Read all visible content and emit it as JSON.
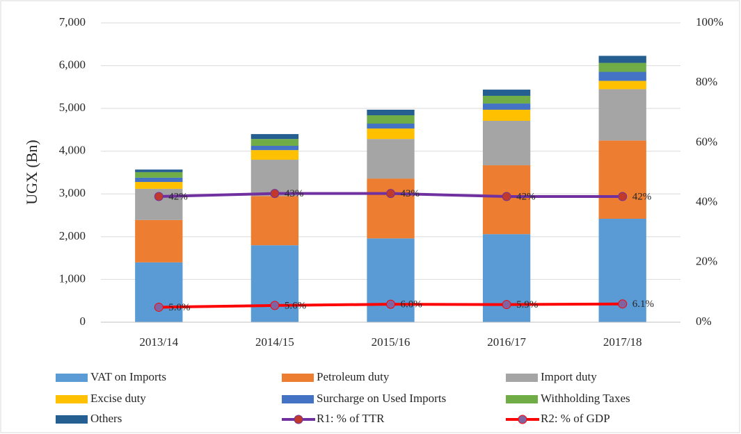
{
  "chart_data": {
    "type": "bar",
    "stacked": true,
    "y_axis_label": "UGX (Bn)",
    "categories": [
      "2013/14",
      "2014/15",
      "2015/16",
      "2016/17",
      "2017/18"
    ],
    "ylim": [
      0,
      7000
    ],
    "yticks": [
      0,
      {
        "value": 1000,
        "label": "1,000"
      },
      {
        "value": 2000,
        "label": "2,000"
      },
      {
        "value": 3000,
        "label": "3,000"
      },
      {
        "value": 4000,
        "label": "4,000"
      },
      {
        "value": 5000,
        "label": "5,000"
      },
      {
        "value": 6000,
        "label": "6,000"
      },
      {
        "value": 7000,
        "label": "7,000"
      }
    ],
    "y2lim": [
      0,
      100
    ],
    "y2ticks": [
      {
        "value": 0,
        "label": "0%"
      },
      {
        "value": 20,
        "label": "20%"
      },
      {
        "value": 40,
        "label": "40%"
      },
      {
        "value": 60,
        "label": "60%"
      },
      {
        "value": 80,
        "label": "80%"
      },
      {
        "value": 100,
        "label": "100%"
      }
    ],
    "grid": true,
    "legend": "bottom",
    "series": [
      {
        "name": "VAT on Imports",
        "color": "#5b9bd5",
        "values": [
          1400,
          1800,
          1960,
          2060,
          2420
        ]
      },
      {
        "name": "Petroleum duty",
        "color": "#ed7d31",
        "values": [
          990,
          1150,
          1400,
          1610,
          1830
        ]
      },
      {
        "name": "Import duty",
        "color": "#a5a5a5",
        "values": [
          730,
          850,
          925,
          1040,
          1200
        ]
      },
      {
        "name": "Excise duty",
        "color": "#ffc000",
        "values": [
          160,
          225,
          245,
          260,
          195
        ]
      },
      {
        "name": "Surcharge on Used Imports",
        "color": "#4472c4",
        "values": [
          100,
          100,
          115,
          145,
          210
        ]
      },
      {
        "name": "Withholding Taxes",
        "color": "#70ad47",
        "values": [
          130,
          160,
          195,
          180,
          210
        ]
      },
      {
        "name": "Others",
        "color": "#255e91",
        "values": [
          60,
          115,
          130,
          145,
          165
        ]
      },
      {
        "name": "R1: % of TTR",
        "type": "line",
        "axis": "y2",
        "color": "#7030a0",
        "marker_color": "#c0392b",
        "values": [
          42,
          43,
          43,
          42,
          42
        ],
        "value_labels": [
          "42%",
          "43%",
          "43%",
          "42%",
          "42%"
        ]
      },
      {
        "name": "R2: % of GDP",
        "type": "line",
        "axis": "y2",
        "color": "#ff0000",
        "marker_color": "#8064a2",
        "values": [
          5.0,
          5.6,
          6.0,
          5.9,
          6.1
        ],
        "value_labels": [
          "5.0%",
          "5.6%",
          "6.0%",
          "5.9%",
          "6.1%"
        ]
      }
    ]
  }
}
